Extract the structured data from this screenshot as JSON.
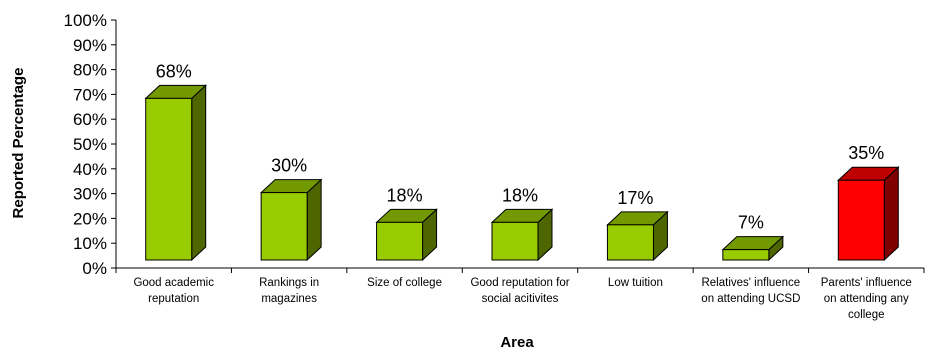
{
  "chart_data": {
    "type": "bar",
    "xlabel": "Area",
    "ylabel": "Reported Percentage",
    "ylim": [
      0,
      100
    ],
    "yticks": [
      "0%",
      "10%",
      "20%",
      "30%",
      "40%",
      "50%",
      "60%",
      "70%",
      "80%",
      "90%",
      "100%"
    ],
    "grid": false,
    "legend": "none",
    "three_d": true,
    "categories": [
      [
        "Good academic",
        "reputation"
      ],
      [
        "Rankings in",
        "magazines"
      ],
      [
        "Size of college"
      ],
      [
        "Good reputation for",
        "social acitivites"
      ],
      [
        "Low tuition"
      ],
      [
        "Relatives' influence",
        "on attending UCSD"
      ],
      [
        "Parents' influence",
        "on attending any",
        "college"
      ]
    ],
    "values": [
      68,
      30,
      18,
      18,
      17,
      7,
      35
    ],
    "labels": [
      "68%",
      "30%",
      "18%",
      "18%",
      "17%",
      "7%",
      "35%"
    ],
    "colors": {
      "default_front": "#99cc00",
      "default_side": "#4d6600",
      "default_top": "#739900",
      "highlight_front": "#ff0000",
      "highlight_side": "#800000",
      "highlight_top": "#bf0000",
      "highlight_index": 6
    }
  }
}
